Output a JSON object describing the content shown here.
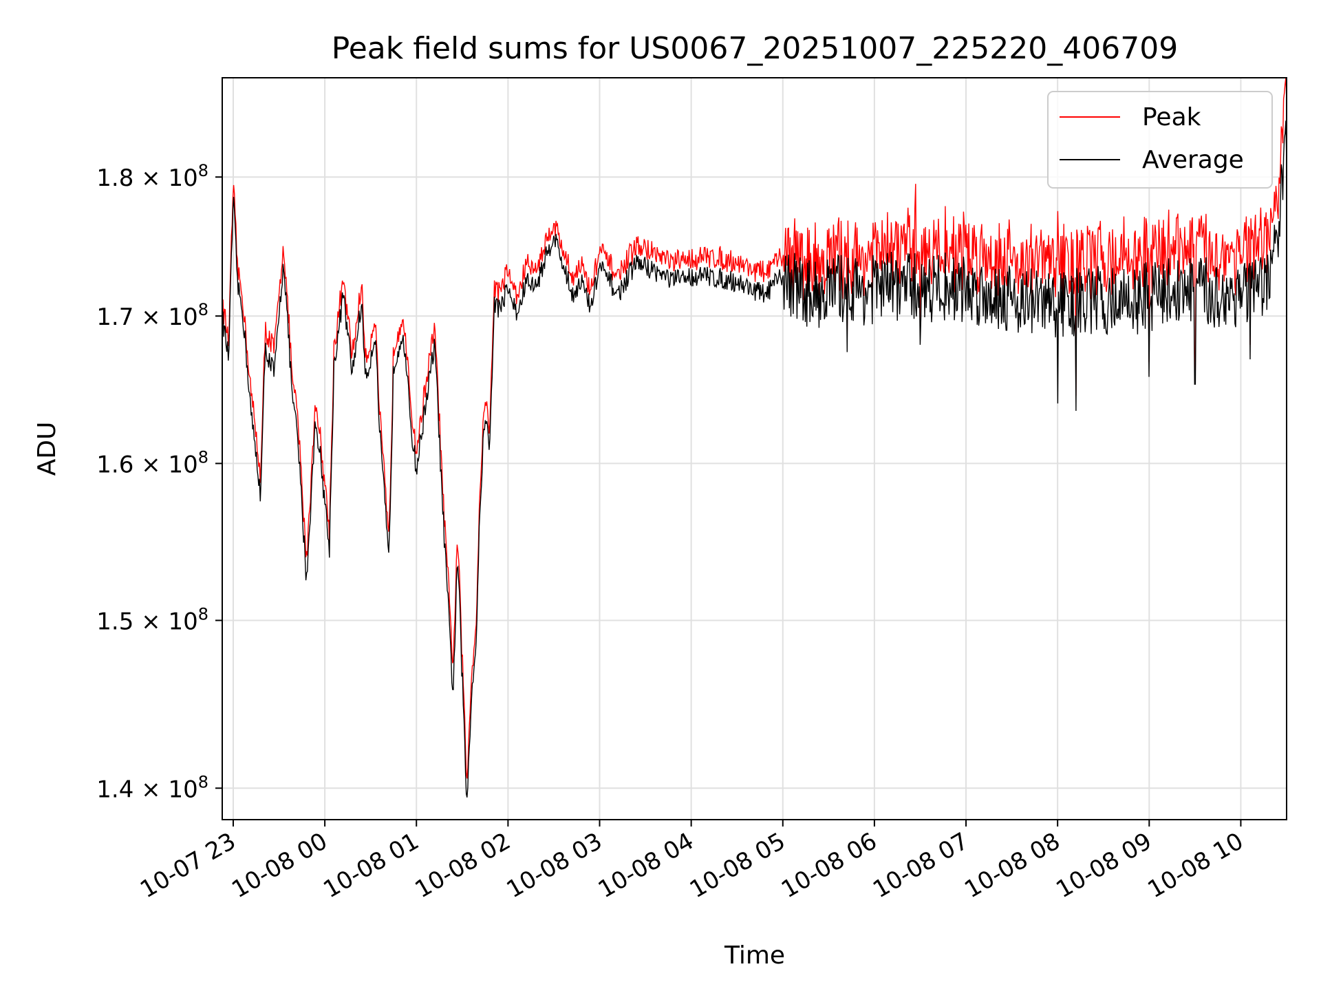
{
  "chart_data": {
    "type": "line",
    "title": "Peak field sums for US0067_20251007_225220_406709",
    "xlabel": "Time",
    "ylabel": "ADU",
    "yscale": "log",
    "xlim_hours": [
      -0.12,
      11.5
    ],
    "ylim": [
      138200000,
      187500000
    ],
    "x_ticks": [
      {
        "hours": 0,
        "label": "10-07 23"
      },
      {
        "hours": 1,
        "label": "10-08 00"
      },
      {
        "hours": 2,
        "label": "10-08 01"
      },
      {
        "hours": 3,
        "label": "10-08 02"
      },
      {
        "hours": 4,
        "label": "10-08 03"
      },
      {
        "hours": 5,
        "label": "10-08 04"
      },
      {
        "hours": 6,
        "label": "10-08 05"
      },
      {
        "hours": 7,
        "label": "10-08 06"
      },
      {
        "hours": 8,
        "label": "10-08 07"
      },
      {
        "hours": 9,
        "label": "10-08 08"
      },
      {
        "hours": 10,
        "label": "10-08 09"
      },
      {
        "hours": 11,
        "label": "10-08 10"
      }
    ],
    "y_ticks": [
      {
        "value": 140000000,
        "mantissa": "1.4",
        "exponent": "8"
      },
      {
        "value": 150000000,
        "mantissa": "1.5",
        "exponent": "8"
      },
      {
        "value": 160000000,
        "mantissa": "1.6",
        "exponent": "8"
      },
      {
        "value": 170000000,
        "mantissa": "1.7",
        "exponent": "8"
      },
      {
        "value": 180000000,
        "mantissa": "1.8",
        "exponent": "8"
      }
    ],
    "grid": true,
    "legend_position": "top-right",
    "series": [
      {
        "name": "Peak",
        "color": "#ff0000"
      },
      {
        "name": "Average",
        "color": "#000000"
      }
    ],
    "x_hours": [
      -0.12,
      -0.05,
      0.0,
      0.05,
      0.1,
      0.2,
      0.3,
      0.35,
      0.45,
      0.55,
      0.65,
      0.7,
      0.8,
      0.9,
      0.95,
      1.05,
      1.1,
      1.2,
      1.3,
      1.4,
      1.45,
      1.55,
      1.6,
      1.7,
      1.75,
      1.85,
      1.95,
      2.0,
      2.1,
      2.2,
      2.3,
      2.4,
      2.45,
      2.55,
      2.6,
      2.65,
      2.7,
      2.75,
      2.8,
      2.85,
      2.9,
      3.0,
      3.1,
      3.2,
      3.3,
      3.5,
      3.7,
      3.8,
      3.9,
      4.0,
      4.2,
      4.4,
      4.6,
      4.8,
      5.0,
      5.2,
      5.5,
      5.8,
      6.0,
      6.3,
      6.6,
      6.9,
      7.2,
      7.5,
      7.8,
      8.1,
      8.4,
      8.7,
      9.0,
      9.3,
      9.6,
      9.9,
      10.2,
      10.5,
      10.8,
      11.0,
      11.2,
      11.3,
      11.4,
      11.5
    ],
    "average": [
      170000000,
      167000000,
      178500000,
      172000000,
      170500000,
      163000000,
      158000000,
      167800000,
      166000000,
      174000000,
      164000000,
      162000000,
      152500000,
      163000000,
      160500000,
      154500000,
      166500000,
      171500000,
      166000000,
      171000000,
      165500000,
      168800000,
      162000000,
      153500000,
      166500000,
      169000000,
      162000000,
      159500000,
      164000000,
      168000000,
      155500000,
      145500000,
      154000000,
      139000000,
      145500000,
      148500000,
      158000000,
      163500000,
      160800000,
      171000000,
      170500000,
      172000000,
      170000000,
      172500000,
      172000000,
      175800000,
      171500000,
      172500000,
      170500000,
      173500000,
      171500000,
      173800000,
      173200000,
      172500000,
      172800000,
      172800000,
      172400000,
      171500000,
      172800000,
      171500000,
      172000000,
      171800000,
      172200000,
      172000000,
      172100000,
      171700000,
      171500000,
      171000000,
      170800000,
      171000000,
      171100000,
      171200000,
      171800000,
      171900000,
      171300000,
      171800000,
      171500000,
      172500000,
      175500000,
      183000000
    ],
    "peak": [
      170800000,
      168000000,
      179200000,
      173000000,
      171200000,
      164200000,
      159000000,
      168800000,
      167500000,
      175000000,
      165000000,
      163200000,
      153500000,
      164000000,
      161500000,
      155500000,
      167500000,
      172300000,
      167000000,
      172000000,
      166500000,
      169800000,
      163000000,
      154500000,
      167500000,
      170000000,
      163000000,
      160500000,
      165000000,
      169000000,
      156500000,
      147000000,
      155000000,
      140000000,
      146500000,
      149500000,
      159000000,
      164500000,
      161800000,
      172000000,
      171500000,
      173000000,
      171000000,
      173500000,
      173000000,
      176500000,
      172500000,
      173500000,
      171500000,
      174500000,
      172500000,
      174800000,
      174200000,
      173500000,
      173800000,
      174000000,
      173600000,
      172800000,
      174000000,
      173000000,
      173500000,
      173400000,
      174000000,
      173900000,
      174000000,
      173700000,
      173500000,
      173200000,
      173000000,
      173300000,
      173400000,
      173500000,
      174000000,
      174200000,
      173500000,
      174000000,
      173800000,
      174800000,
      177500000,
      186500000
    ],
    "noise_start_hours": 6.0,
    "noise_amplitude": 2500000,
    "dips": [
      {
        "hours": 6.7,
        "value": 167500000
      },
      {
        "hours": 7.5,
        "value": 168000000
      },
      {
        "hours": 9.0,
        "value": 164000000
      },
      {
        "hours": 9.2,
        "value": 163500000
      },
      {
        "hours": 10.0,
        "value": 165800000
      },
      {
        "hours": 10.5,
        "value": 165300000
      },
      {
        "hours": 11.1,
        "value": 167000000
      }
    ],
    "spikes": [
      {
        "hours": 7.45,
        "value": 179500000
      },
      {
        "hours": 8.0,
        "value": 176500000
      },
      {
        "hours": 9.0,
        "value": 177500000
      },
      {
        "hours": 10.3,
        "value": 177000000
      },
      {
        "hours": 10.8,
        "value": 175800000
      }
    ]
  }
}
